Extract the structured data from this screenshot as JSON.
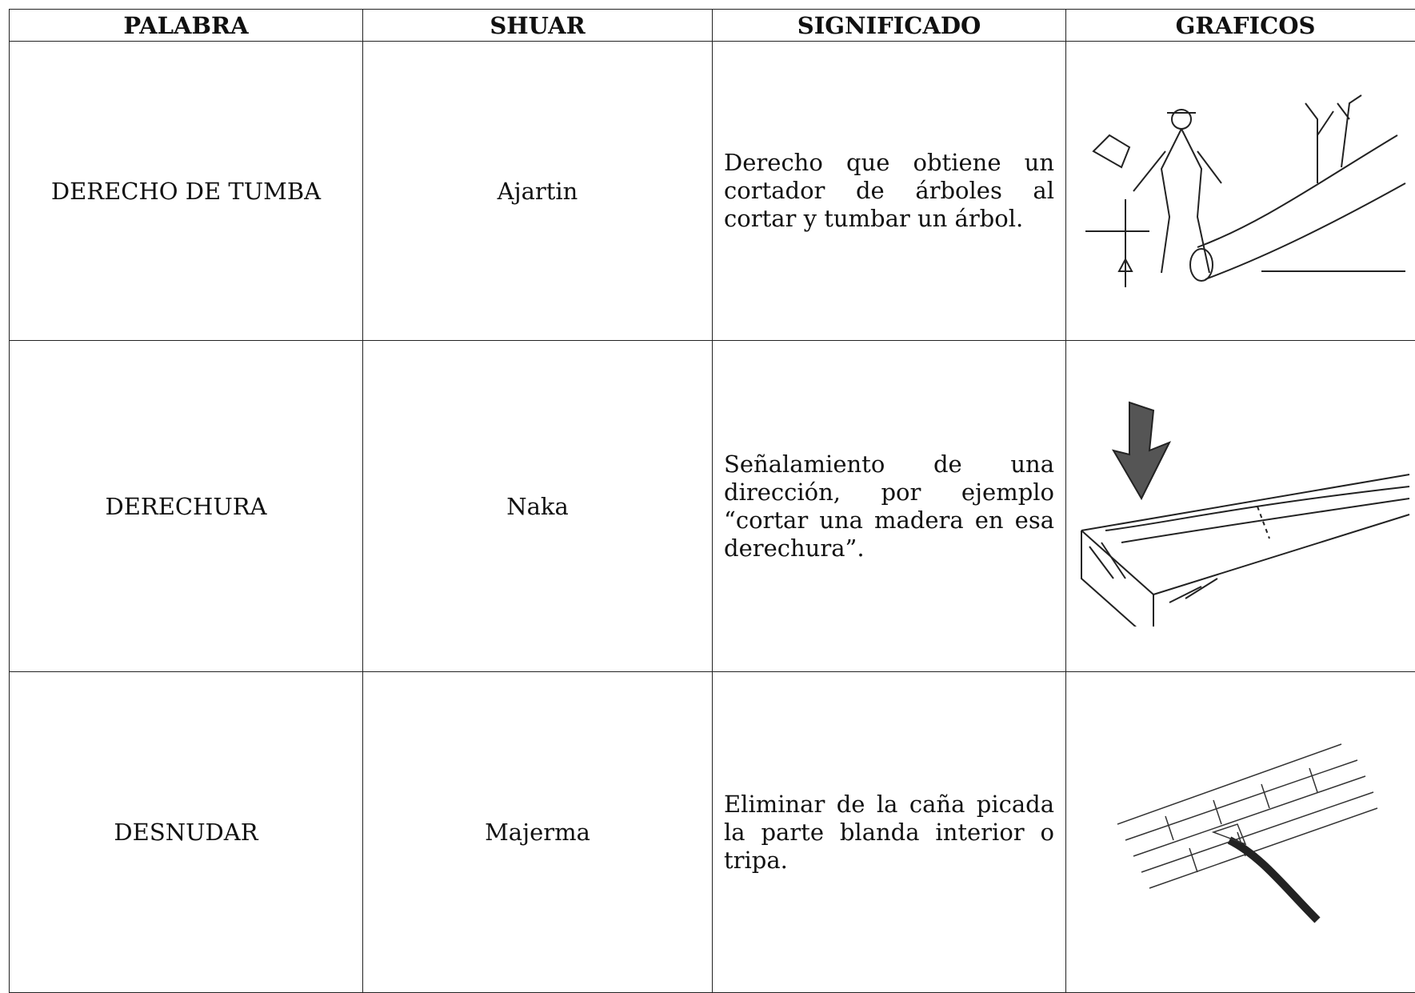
{
  "table": {
    "header": [
      "PALABRA",
      "SHUAR",
      "SIGNIFICADO",
      "GRAFICOS"
    ],
    "rows": [
      [
        "DERECHO DE TUMBA",
        "Ajartin",
        "Derecho que obtiene un cortador de árboles al cortar y tumbar un árbol."
      ],
      [
        "DERECHURA",
        "Naka",
        "Señalamiento de una dirección, por ejemplo “cortar una madera en esa derechura”."
      ],
      [
        "DESNUDAR",
        "Majerma",
        "Eliminar de la caña picada la parte blanda interior o tripa."
      ]
    ]
  }
}
